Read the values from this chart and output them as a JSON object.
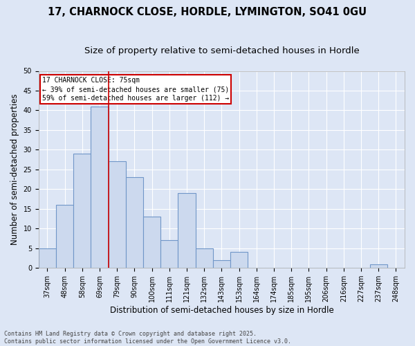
{
  "title_line1": "17, CHARNOCK CLOSE, HORDLE, LYMINGTON, SO41 0GU",
  "title_line2": "Size of property relative to semi-detached houses in Hordle",
  "xlabel": "Distribution of semi-detached houses by size in Hordle",
  "ylabel": "Number of semi-detached properties",
  "categories": [
    "37sqm",
    "48sqm",
    "58sqm",
    "69sqm",
    "79sqm",
    "90sqm",
    "100sqm",
    "111sqm",
    "121sqm",
    "132sqm",
    "143sqm",
    "153sqm",
    "164sqm",
    "174sqm",
    "185sqm",
    "195sqm",
    "206sqm",
    "216sqm",
    "227sqm",
    "237sqm",
    "248sqm"
  ],
  "values": [
    5,
    16,
    29,
    41,
    27,
    23,
    13,
    7,
    19,
    5,
    2,
    4,
    0,
    0,
    0,
    0,
    0,
    0,
    0,
    1,
    0
  ],
  "bar_color": "#ccd9ee",
  "bar_edge_color": "#7096c8",
  "bar_edge_width": 0.8,
  "vline_color": "#cc0000",
  "vline_x_index": 3.5,
  "annotation_line1": "17 CHARNOCK CLOSE: 75sqm",
  "annotation_line2": "← 39% of semi-detached houses are smaller (75)",
  "annotation_line3": "59% of semi-detached houses are larger (112) →",
  "annotation_box_color": "#cc0000",
  "annotation_bg": "#ffffff",
  "ylim": [
    0,
    50
  ],
  "yticks": [
    0,
    5,
    10,
    15,
    20,
    25,
    30,
    35,
    40,
    45,
    50
  ],
  "background_color": "#dde6f5",
  "grid_color": "#ffffff",
  "footer_line1": "Contains HM Land Registry data © Crown copyright and database right 2025.",
  "footer_line2": "Contains public sector information licensed under the Open Government Licence v3.0.",
  "title_fontsize": 10.5,
  "subtitle_fontsize": 9.5,
  "axis_label_fontsize": 8.5,
  "tick_fontsize": 7,
  "annotation_fontsize": 7,
  "footer_fontsize": 6
}
